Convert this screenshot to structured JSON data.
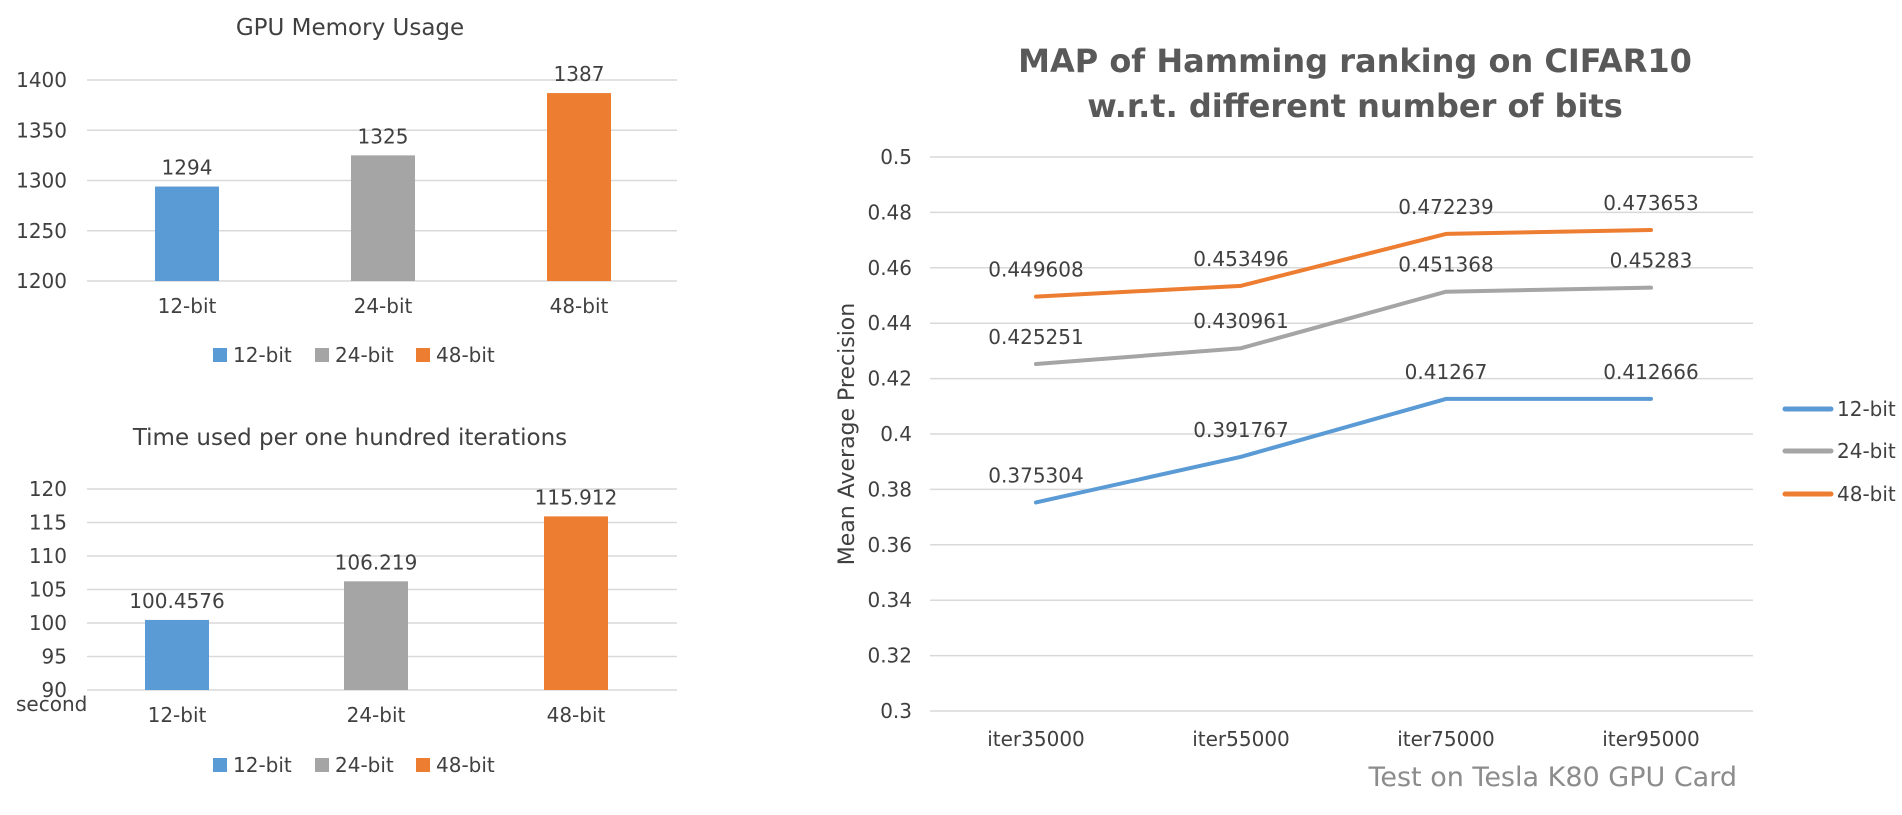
{
  "colors": {
    "12-bit": "#5b9bd5",
    "24-bit": "#a5a5a5",
    "48-bit": "#ed7d31"
  },
  "chart_data": [
    {
      "type": "bar",
      "title": "GPU Memory Usage",
      "categories": [
        "12-bit",
        "24-bit",
        "48-bit"
      ],
      "values": [
        1294,
        1325,
        1387
      ],
      "value_labels": [
        "1294",
        "1325",
        "1387"
      ],
      "ylim": [
        1200,
        1400
      ],
      "yticks": [
        1200,
        1250,
        1300,
        1350,
        1400
      ],
      "ylabel": "",
      "legend": [
        "12-bit",
        "24-bit",
        "48-bit"
      ],
      "legend_position": "bottom"
    },
    {
      "type": "bar",
      "title": "Time used per one hundred iterations",
      "categories": [
        "12-bit",
        "24-bit",
        "48-bit"
      ],
      "values": [
        100.4576,
        106.219,
        115.912
      ],
      "value_labels": [
        "100.4576",
        "106.219",
        "115.912"
      ],
      "ylim": [
        90,
        120
      ],
      "yticks": [
        90,
        95,
        100,
        105,
        110,
        115,
        120
      ],
      "ylabel": "second",
      "legend": [
        "12-bit",
        "24-bit",
        "48-bit"
      ],
      "legend_position": "bottom"
    },
    {
      "type": "line",
      "title": [
        "MAP of Hamming ranking on CIFAR10",
        "w.r.t. different number of bits"
      ],
      "x": [
        "iter35000",
        "iter55000",
        "iter75000",
        "iter95000"
      ],
      "ylabel": "Mean Average Precision",
      "ylim": [
        0.3,
        0.5
      ],
      "yticks": [
        "0.3",
        "0.32",
        "0.34",
        "0.36",
        "0.38",
        "0.4",
        "0.42",
        "0.44",
        "0.46",
        "0.48",
        "0.5"
      ],
      "series": [
        {
          "name": "12-bit",
          "values": [
            0.375304,
            0.391767,
            0.41267,
            0.412666
          ],
          "labels": [
            "0.375304",
            "0.391767",
            "0.41267",
            "0.412666"
          ]
        },
        {
          "name": "24-bit",
          "values": [
            0.425251,
            0.430961,
            0.451368,
            0.45283
          ],
          "labels": [
            "0.425251",
            "0.430961",
            "0.451368",
            "0.45283"
          ]
        },
        {
          "name": "48-bit",
          "values": [
            0.449608,
            0.453496,
            0.472239,
            0.473653
          ],
          "labels": [
            "0.449608",
            "0.453496",
            "0.472239",
            "0.473653"
          ]
        }
      ],
      "legend_position": "right",
      "footnote": "Test on Tesla K80 GPU Card"
    }
  ]
}
